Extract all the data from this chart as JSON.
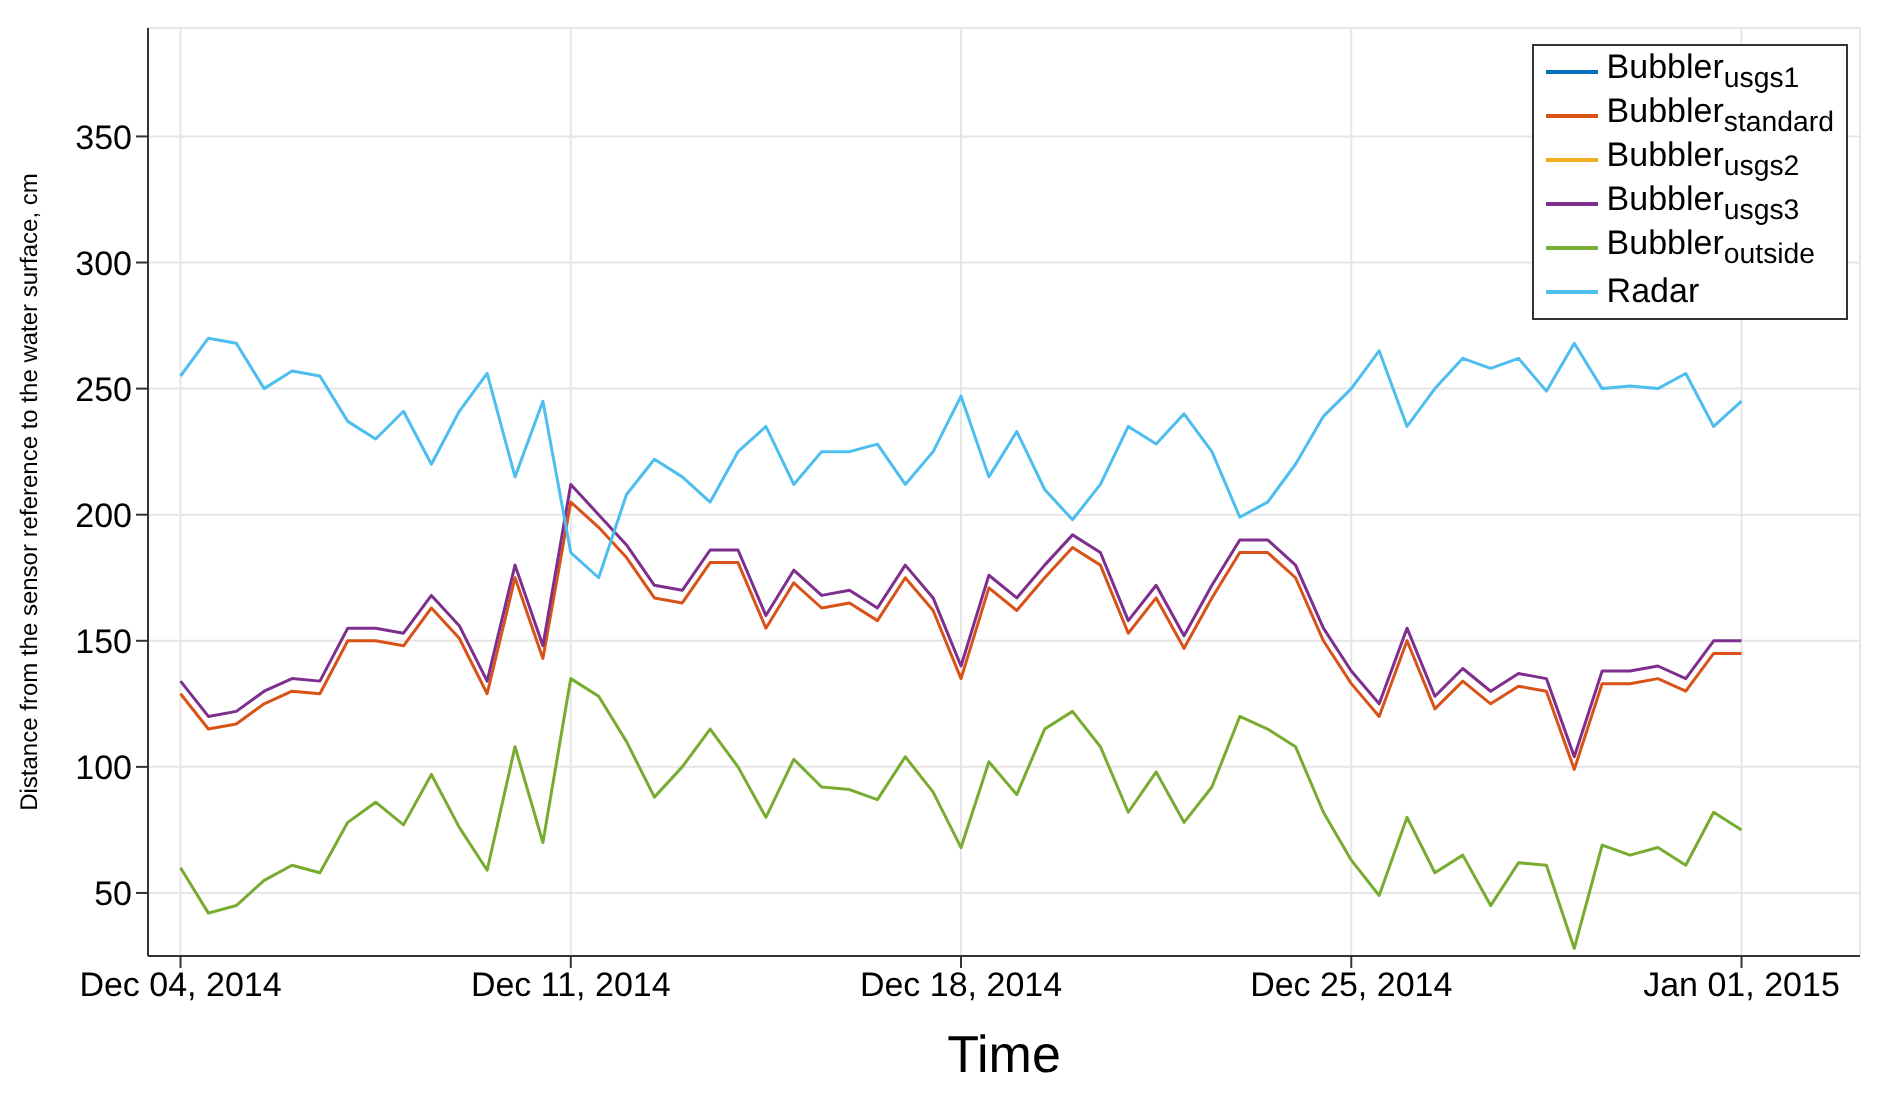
{
  "chart_data": {
    "type": "line",
    "xlabel": "Time",
    "ylabel": "Distance from the sensor reference to the water surface, cm",
    "x": [
      "2014-12-04T00:00",
      "2014-12-04T12:00",
      "2014-12-05T00:00",
      "2014-12-05T12:00",
      "2014-12-06T00:00",
      "2014-12-06T12:00",
      "2014-12-07T00:00",
      "2014-12-07T12:00",
      "2014-12-08T00:00",
      "2014-12-08T12:00",
      "2014-12-09T00:00",
      "2014-12-09T12:00",
      "2014-12-10T00:00",
      "2014-12-10T12:00",
      "2014-12-11T00:00",
      "2014-12-11T12:00",
      "2014-12-12T00:00",
      "2014-12-12T12:00",
      "2014-12-13T00:00",
      "2014-12-13T12:00",
      "2014-12-14T00:00",
      "2014-12-14T12:00",
      "2014-12-15T00:00",
      "2014-12-15T12:00",
      "2014-12-16T00:00",
      "2014-12-16T12:00",
      "2014-12-17T00:00",
      "2014-12-17T12:00",
      "2014-12-18T00:00",
      "2014-12-18T12:00",
      "2014-12-19T00:00",
      "2014-12-19T12:00",
      "2014-12-20T00:00",
      "2014-12-20T12:00",
      "2014-12-21T00:00",
      "2014-12-21T12:00",
      "2014-12-22T00:00",
      "2014-12-22T12:00",
      "2014-12-23T00:00",
      "2014-12-23T12:00",
      "2014-12-24T00:00",
      "2014-12-24T12:00",
      "2014-12-25T00:00",
      "2014-12-25T12:00",
      "2014-12-26T00:00",
      "2014-12-26T12:00",
      "2014-12-27T00:00",
      "2014-12-27T12:00",
      "2014-12-28T00:00",
      "2014-12-28T12:00",
      "2014-12-29T00:00",
      "2014-12-29T12:00",
      "2014-12-30T00:00",
      "2014-12-30T12:00",
      "2014-12-31T00:00",
      "2014-12-31T12:00",
      "2015-01-01T00:00"
    ],
    "series": [
      {
        "name": "Bubbler$_{usgs1}$",
        "color": "#0072bd",
        "values": [
          null,
          null,
          null,
          null,
          null,
          null,
          null,
          null,
          null,
          null,
          null,
          null,
          null,
          null,
          null,
          null,
          null,
          null,
          null,
          null,
          null,
          null,
          null,
          null,
          null,
          null,
          null,
          null,
          null,
          null,
          null,
          null,
          null,
          null,
          null,
          null,
          null,
          null,
          null,
          null,
          null,
          null,
          null,
          null,
          null,
          null,
          null,
          null,
          null,
          null,
          null,
          null,
          null,
          null,
          null,
          null,
          null
        ]
      },
      {
        "name": "Bubbler$_{standard}$",
        "color": "#d95319",
        "values": [
          129,
          115,
          117,
          125,
          130,
          129,
          150,
          150,
          148,
          163,
          151,
          129,
          175,
          143,
          205,
          195,
          183,
          167,
          165,
          181,
          181,
          155,
          173,
          163,
          165,
          158,
          175,
          162,
          135,
          171,
          162,
          175,
          187,
          180,
          153,
          167,
          147,
          167,
          185,
          185,
          175,
          150,
          133,
          120,
          150,
          123,
          134,
          125,
          132,
          130,
          99,
          133,
          133,
          135,
          130,
          145,
          145
        ]
      },
      {
        "name": "Bubbler$_{usgs2}$",
        "color": "#edb120",
        "values": [
          null,
          null,
          null,
          null,
          null,
          null,
          null,
          null,
          null,
          null,
          null,
          null,
          null,
          null,
          null,
          null,
          null,
          null,
          null,
          null,
          null,
          null,
          null,
          null,
          null,
          null,
          null,
          null,
          null,
          null,
          null,
          null,
          null,
          null,
          null,
          null,
          null,
          null,
          null,
          null,
          null,
          null,
          null,
          null,
          null,
          null,
          null,
          null,
          null,
          null,
          null,
          null,
          null,
          null,
          null,
          null,
          null
        ]
      },
      {
        "name": "Bubbler$_{usgs3}$",
        "color": "#7e2f8e",
        "values": [
          134,
          120,
          122,
          130,
          135,
          134,
          155,
          155,
          153,
          168,
          156,
          134,
          180,
          148,
          212,
          200,
          188,
          172,
          170,
          186,
          186,
          160,
          178,
          168,
          170,
          163,
          180,
          167,
          140,
          176,
          167,
          180,
          192,
          185,
          158,
          172,
          152,
          172,
          190,
          190,
          180,
          155,
          138,
          125,
          155,
          128,
          139,
          130,
          137,
          135,
          104,
          138,
          138,
          140,
          135,
          150,
          150
        ]
      },
      {
        "name": "Bubbler$_{outside}$",
        "color": "#77ac30",
        "values": [
          60,
          42,
          45,
          55,
          61,
          58,
          78,
          86,
          77,
          97,
          76,
          59,
          108,
          70,
          135,
          128,
          110,
          88,
          100,
          115,
          100,
          80,
          103,
          92,
          91,
          87,
          104,
          90,
          68,
          102,
          89,
          115,
          122,
          108,
          82,
          98,
          78,
          92,
          120,
          115,
          108,
          82,
          63,
          49,
          80,
          58,
          65,
          45,
          62,
          61,
          28,
          69,
          65,
          68,
          61,
          82,
          75
        ]
      },
      {
        "name": "Radar",
        "color": "#4dbeee",
        "values": [
          255,
          270,
          268,
          250,
          257,
          255,
          237,
          230,
          241,
          220,
          241,
          256,
          215,
          245,
          185,
          175,
          208,
          222,
          215,
          205,
          225,
          235,
          212,
          225,
          225,
          228,
          212,
          225,
          247,
          215,
          233,
          210,
          198,
          212,
          235,
          228,
          240,
          225,
          199,
          205,
          220,
          239,
          250,
          265,
          235,
          250,
          262,
          258,
          262,
          249,
          268,
          250,
          251,
          250,
          256,
          235,
          245
        ]
      }
    ],
    "xlim": [
      "2014-12-03T10:00",
      "2015-01-03T03:00"
    ],
    "xticks": [
      {
        "value": "2014-12-04T00:00",
        "label": "Dec 04, 2014"
      },
      {
        "value": "2014-12-11T00:00",
        "label": "Dec 11, 2014"
      },
      {
        "value": "2014-12-18T00:00",
        "label": "Dec 18, 2014"
      },
      {
        "value": "2014-12-25T00:00",
        "label": "Dec 25, 2014"
      },
      {
        "value": "2015-01-01T00:00",
        "label": "Jan 01, 2015"
      }
    ],
    "ylim": [
      25,
      393
    ],
    "yticks": [
      50,
      100,
      150,
      200,
      250,
      300,
      350
    ],
    "grid": true,
    "legend": "top right",
    "marker": "none",
    "line_style": "solid"
  }
}
